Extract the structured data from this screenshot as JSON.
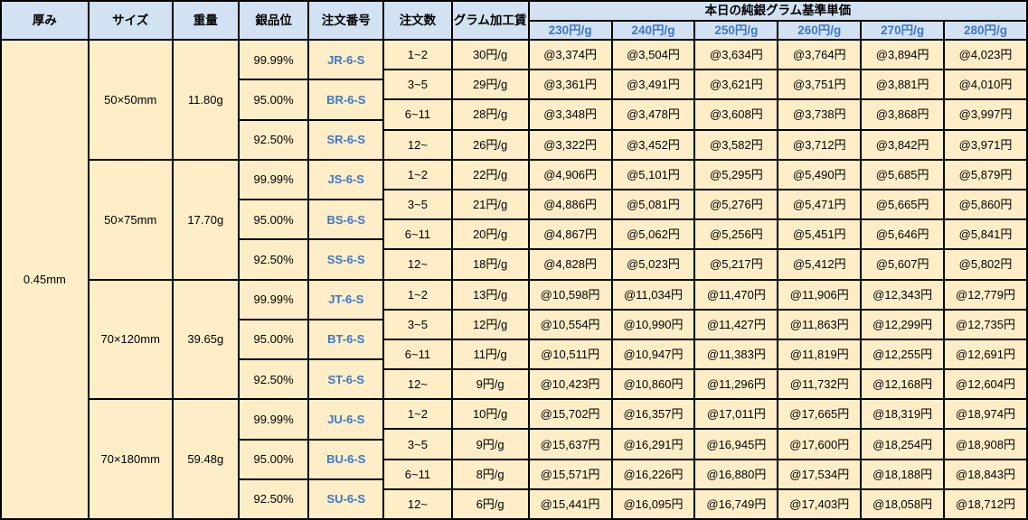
{
  "chart_data": {
    "type": "table",
    "column_headers": {
      "thickness": "厚み",
      "size": "サイズ",
      "weight": "重量",
      "purity": "銀品位",
      "order_no": "注文番号",
      "order_qty": "注文数",
      "gram_fee": "グラム加工賃"
    },
    "price_group_header": "本日の純銀グラム基準単価",
    "price_columns": [
      "230円/g",
      "240円/g",
      "250円/g",
      "260円/g",
      "270円/g",
      "280円/g"
    ],
    "thickness_value": "0.45mm",
    "blocks": [
      {
        "size": "50×50mm",
        "weight": "11.80g",
        "purity_rows": [
          {
            "purity": "99.99%",
            "order_no": "JR-6-S"
          },
          {
            "purity": "95.00%",
            "order_no": "BR-6-S"
          },
          {
            "purity": "92.50%",
            "order_no": "SR-6-S"
          }
        ],
        "qty_rows": [
          {
            "qty": "1~2",
            "fee": "30円/g",
            "prices": [
              "@3,374円",
              "@3,504円",
              "@3,634円",
              "@3,764円",
              "@3,894円",
              "@4,023円"
            ]
          },
          {
            "qty": "3~5",
            "fee": "29円/g",
            "prices": [
              "@3,361円",
              "@3,491円",
              "@3,621円",
              "@3,751円",
              "@3,881円",
              "@4,010円"
            ]
          },
          {
            "qty": "6~11",
            "fee": "28円/g",
            "prices": [
              "@3,348円",
              "@3,478円",
              "@3,608円",
              "@3,738円",
              "@3,868円",
              "@3,997円"
            ]
          },
          {
            "qty": "12~",
            "fee": "26円/g",
            "prices": [
              "@3,322円",
              "@3,452円",
              "@3,582円",
              "@3,712円",
              "@3,842円",
              "@3,971円"
            ]
          }
        ]
      },
      {
        "size": "50×75mm",
        "weight": "17.70g",
        "purity_rows": [
          {
            "purity": "99.99%",
            "order_no": "JS-6-S"
          },
          {
            "purity": "95.00%",
            "order_no": "BS-6-S"
          },
          {
            "purity": "92.50%",
            "order_no": "SS-6-S"
          }
        ],
        "qty_rows": [
          {
            "qty": "1~2",
            "fee": "22円/g",
            "prices": [
              "@4,906円",
              "@5,101円",
              "@5,295円",
              "@5,490円",
              "@5,685円",
              "@5,879円"
            ]
          },
          {
            "qty": "3~5",
            "fee": "21円/g",
            "prices": [
              "@4,886円",
              "@5,081円",
              "@5,276円",
              "@5,471円",
              "@5,665円",
              "@5,860円"
            ]
          },
          {
            "qty": "6~11",
            "fee": "20円/g",
            "prices": [
              "@4,867円",
              "@5,062円",
              "@5,256円",
              "@5,451円",
              "@5,646円",
              "@5,841円"
            ]
          },
          {
            "qty": "12~",
            "fee": "18円/g",
            "prices": [
              "@4,828円",
              "@5,023円",
              "@5,217円",
              "@5,412円",
              "@5,607円",
              "@5,802円"
            ]
          }
        ]
      },
      {
        "size": "70×120mm",
        "weight": "39.65g",
        "purity_rows": [
          {
            "purity": "99.99%",
            "order_no": "JT-6-S"
          },
          {
            "purity": "95.00%",
            "order_no": "BT-6-S"
          },
          {
            "purity": "92.50%",
            "order_no": "ST-6-S"
          }
        ],
        "qty_rows": [
          {
            "qty": "1~2",
            "fee": "13円/g",
            "prices": [
              "@10,598円",
              "@11,034円",
              "@11,470円",
              "@11,906円",
              "@12,343円",
              "@12,779円"
            ]
          },
          {
            "qty": "3~5",
            "fee": "12円/g",
            "prices": [
              "@10,554円",
              "@10,990円",
              "@11,427円",
              "@11,863円",
              "@12,299円",
              "@12,735円"
            ]
          },
          {
            "qty": "6~11",
            "fee": "11円/g",
            "prices": [
              "@10,511円",
              "@10,947円",
              "@11,383円",
              "@11,819円",
              "@12,255円",
              "@12,691円"
            ]
          },
          {
            "qty": "12~",
            "fee": "9円/g",
            "prices": [
              "@10,423円",
              "@10,860円",
              "@11,296円",
              "@11,732円",
              "@12,168円",
              "@12,604円"
            ]
          }
        ]
      },
      {
        "size": "70×180mm",
        "weight": "59.48g",
        "purity_rows": [
          {
            "purity": "99.99%",
            "order_no": "JU-6-S"
          },
          {
            "purity": "95.00%",
            "order_no": "BU-6-S"
          },
          {
            "purity": "92.50%",
            "order_no": "SU-6-S"
          }
        ],
        "qty_rows": [
          {
            "qty": "1~2",
            "fee": "10円/g",
            "prices": [
              "@15,702円",
              "@16,357円",
              "@17,011円",
              "@17,665円",
              "@18,319円",
              "@18,974円"
            ]
          },
          {
            "qty": "3~5",
            "fee": "9円/g",
            "prices": [
              "@15,637円",
              "@16,291円",
              "@16,945円",
              "@17,600円",
              "@18,254円",
              "@18,908円"
            ]
          },
          {
            "qty": "6~11",
            "fee": "8円/g",
            "prices": [
              "@15,571円",
              "@16,226円",
              "@16,880円",
              "@17,534円",
              "@18,188円",
              "@18,843円"
            ]
          },
          {
            "qty": "12~",
            "fee": "6円/g",
            "prices": [
              "@15,441円",
              "@16,095円",
              "@16,749円",
              "@17,403円",
              "@18,058円",
              "@18,712円"
            ]
          }
        ]
      }
    ],
    "colors": {
      "header_bg": "#D2E2F2",
      "body_bg": "#FDEEC8",
      "accent_blue_text": "#3F76C6",
      "grid_line": "#000000"
    },
    "layout": {
      "legend_position": "none",
      "grid": "on",
      "header_rows": 2,
      "qty_rows_per_block": 4,
      "purity_rows_per_block": 3
    }
  }
}
